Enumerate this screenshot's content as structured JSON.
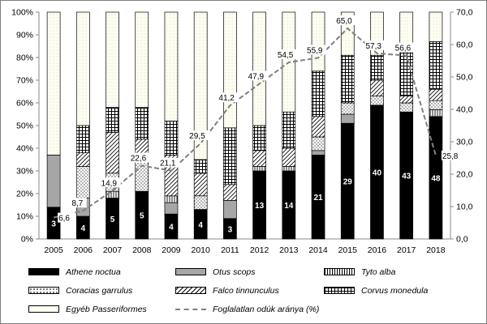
{
  "chart_data": {
    "type": "bar",
    "stacked": true,
    "categories": [
      "2005",
      "2006",
      "2007",
      "2008",
      "2009",
      "2010",
      "2011",
      "2012",
      "2013",
      "2014",
      "2015",
      "2016",
      "2017",
      "2018"
    ],
    "y_left_ticks": [
      "0%",
      "10%",
      "20%",
      "30%",
      "40%",
      "50%",
      "60%",
      "70%",
      "80%",
      "90%",
      "100%"
    ],
    "y_right_ticks": [
      "0,0",
      "10,0",
      "20,0",
      "30,0",
      "40,0",
      "50,0",
      "60,0",
      "70,0"
    ],
    "ylim_left": [
      0,
      100
    ],
    "ylim_right": [
      0,
      70
    ],
    "grid": false,
    "legend_position": "bottom",
    "series": [
      {
        "name": "Athene noctua",
        "pattern": "solid-black",
        "values": [
          14,
          10,
          18,
          21,
          11,
          13,
          9,
          30,
          30,
          37,
          51,
          59,
          56,
          54
        ]
      },
      {
        "name": "Otus scops",
        "pattern": "solid-gray",
        "values": [
          23,
          8,
          0,
          0,
          5,
          0,
          8,
          0,
          0,
          2,
          4,
          0,
          0,
          0
        ]
      },
      {
        "name": "Tyto alba",
        "pattern": "vertical-lines",
        "values": [
          0,
          0,
          3,
          0,
          3,
          0,
          0,
          2,
          2,
          0,
          0,
          0,
          0,
          3
        ]
      },
      {
        "name": "Coracias garrulus",
        "pattern": "dots",
        "values": [
          0,
          14,
          8,
          16,
          0,
          6,
          0,
          0,
          0,
          6,
          5,
          4,
          4,
          4
        ]
      },
      {
        "name": "Falco tinnunculus",
        "pattern": "diagonal-lines",
        "values": [
          0,
          6,
          18,
          7,
          18,
          10,
          7,
          7,
          8,
          9,
          0,
          7,
          3,
          5
        ]
      },
      {
        "name": "Corvus monedula",
        "pattern": "grid",
        "values": [
          0,
          12,
          11,
          14,
          15,
          6,
          25,
          11,
          16,
          20,
          21,
          11,
          20,
          21
        ]
      },
      {
        "name": "Egyéb Passeriformes",
        "pattern": "fine-dots",
        "values": [
          63,
          50,
          42,
          42,
          48,
          65,
          51,
          50,
          44,
          26,
          19,
          19,
          17,
          13
        ]
      }
    ],
    "bar_labels": [
      "3",
      "4",
      "5",
      "5",
      "4",
      "4",
      "3",
      "13",
      "14",
      "21",
      "29",
      "40",
      "43",
      "48"
    ],
    "line": {
      "name": "Foglalatlan odúk aránya (%)",
      "axis": "right",
      "style": "dashed-gray",
      "values": [
        6.6,
        8.7,
        14.9,
        22.6,
        21.1,
        29.5,
        41.2,
        47.9,
        54.5,
        55.9,
        65.0,
        57.3,
        56.6,
        25.8
      ],
      "labels": [
        "6,6",
        "8,7",
        "14,9",
        "22,6",
        "21,1",
        "29,5",
        "41,2",
        "47,9",
        "54,5",
        "55,9",
        "65,0",
        "57,3",
        "56,6",
        "25,8"
      ]
    }
  }
}
